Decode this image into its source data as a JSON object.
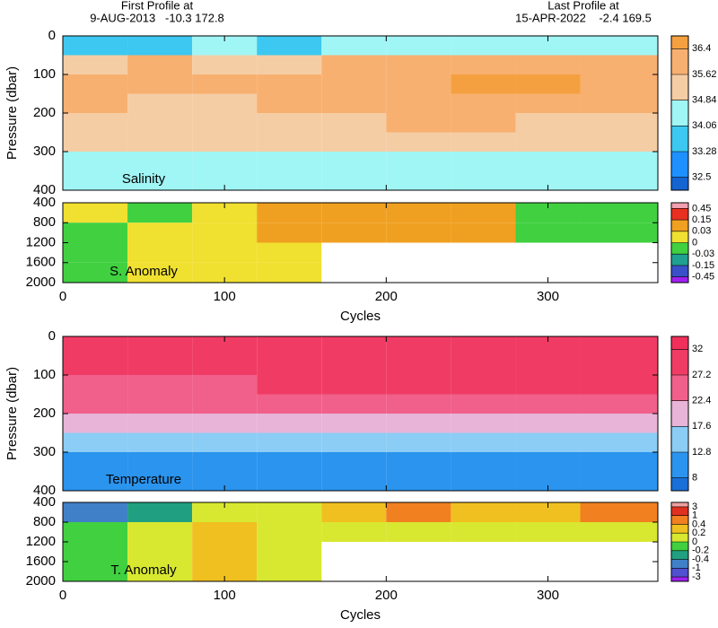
{
  "header": {
    "first_label": "First Profile at",
    "first_value": "9-AUG-2013   -10.3 172.8",
    "last_label": "Last Profile at",
    "last_value": "15-APR-2022    -2.4 169.5"
  },
  "chart_data": [
    {
      "type": "contour",
      "label": "Salinity",
      "ylabel": "Pressure (dbar)",
      "xlim": [
        0,
        368
      ],
      "xticks": [
        0,
        100,
        200,
        300
      ],
      "ylim": [
        0,
        400
      ],
      "yticks": [
        0,
        100,
        200,
        300,
        400
      ],
      "x_bins": [
        0,
        40,
        80,
        120,
        160,
        200,
        240,
        280,
        320,
        368
      ],
      "y_bins": [
        0,
        50,
        100,
        150,
        200,
        250,
        300,
        350,
        400
      ],
      "z": [
        [
          34.0,
          33.9,
          34.1,
          34.0,
          34.2,
          34.3,
          34.4,
          34.5,
          34.6
        ],
        [
          35.6,
          35.7,
          35.6,
          35.5,
          35.9,
          36.0,
          36.2,
          36.3,
          36.2
        ],
        [
          36.0,
          35.9,
          35.8,
          35.7,
          36.1,
          36.3,
          36.5,
          36.4,
          36.3
        ],
        [
          35.7,
          35.6,
          35.6,
          35.8,
          36.0,
          36.2,
          36.3,
          36.2,
          36.1
        ],
        [
          35.2,
          35.1,
          35.2,
          35.4,
          35.6,
          35.7,
          35.7,
          35.6,
          35.5
        ],
        [
          34.9,
          34.9,
          34.9,
          34.9,
          35.0,
          35.1,
          35.1,
          35.0,
          35.0
        ],
        [
          34.6,
          34.6,
          34.6,
          34.7,
          34.8,
          34.8,
          34.8,
          34.8,
          34.8
        ],
        [
          34.5,
          34.5,
          34.5,
          34.6,
          34.6,
          34.6,
          34.6,
          34.6,
          34.6
        ]
      ],
      "cticks": [
        32.5,
        33.28,
        34.06,
        34.84,
        35.62,
        36.4
      ],
      "colors": [
        "#1464d2",
        "#1e90ff",
        "#3cc8f0",
        "#a0f5f5",
        "#f5cda5",
        "#f8b070",
        "#f5a040"
      ]
    },
    {
      "type": "contour",
      "label": "S. Anomaly",
      "xlabel": "Cycles",
      "xlim": [
        0,
        368
      ],
      "xticks": [
        0,
        100,
        200,
        300
      ],
      "ylim": [
        400,
        2000
      ],
      "yticks": [
        400,
        800,
        1200,
        1600,
        2000
      ],
      "x_bins": [
        0,
        40,
        80,
        120,
        160,
        200,
        240,
        280,
        320,
        368
      ],
      "y_bins": [
        400,
        800,
        1200,
        1600,
        2000
      ],
      "z": [
        [
          0.02,
          -0.02,
          0.01,
          0.05,
          0.1,
          0.12,
          0.1,
          -0.02,
          -0.02
        ],
        [
          -0.01,
          0.01,
          0.02,
          0.03,
          0.05,
          0.05,
          0.05,
          -0.02,
          -0.02
        ],
        [
          -0.01,
          0.01,
          0.02,
          0.01,
          null,
          null,
          null,
          null,
          null
        ],
        [
          -0.02,
          0.01,
          0.01,
          0.01,
          null,
          null,
          null,
          null,
          null
        ]
      ],
      "cticks": [
        -0.45,
        -0.15,
        -0.03,
        0,
        0.03,
        0.15,
        0.45
      ],
      "colors": [
        "#a020f0",
        "#3a50c8",
        "#20a090",
        "#40d040",
        "#f0e030",
        "#f0a020",
        "#e83020",
        "#f0a0b0"
      ]
    },
    {
      "type": "contour",
      "label": "Temperature",
      "ylabel": "Pressure (dbar)",
      "xlim": [
        0,
        368
      ],
      "xticks": [
        0,
        100,
        200,
        300
      ],
      "ylim": [
        0,
        400
      ],
      "yticks": [
        0,
        100,
        200,
        300,
        400
      ],
      "x_bins": [
        0,
        40,
        80,
        120,
        160,
        200,
        240,
        280,
        320,
        368
      ],
      "y_bins": [
        0,
        50,
        100,
        150,
        200,
        250,
        300,
        350,
        400
      ],
      "z": [
        [
          29.5,
          29.6,
          29.7,
          29.8,
          29.9,
          30.0,
          29.8,
          29.6,
          29.5
        ],
        [
          28.5,
          28.3,
          28.4,
          28.6,
          28.8,
          28.9,
          28.7,
          28.5,
          28.4
        ],
        [
          27.0,
          26.5,
          26.8,
          27.3,
          27.5,
          27.8,
          27.5,
          27.4,
          27.2
        ],
        [
          24.5,
          23.8,
          24.0,
          24.8,
          25.5,
          25.8,
          25.6,
          25.2,
          24.9
        ],
        [
          20.5,
          19.5,
          19.8,
          21.0,
          22.0,
          22.3,
          22.0,
          21.5,
          21.0
        ],
        [
          16.0,
          15.5,
          15.8,
          13.5,
          14.5,
          15.0,
          14.8,
          14.5,
          14.0
        ],
        [
          12.5,
          12.2,
          12.4,
          11.8,
          12.0,
          12.3,
          12.2,
          12.0,
          11.8
        ],
        [
          11.2,
          11.0,
          11.1,
          10.8,
          11.0,
          11.2,
          11.1,
          10.9,
          10.8
        ]
      ],
      "cticks": [
        8,
        12.8,
        17.6,
        22.4,
        27.2,
        32
      ],
      "colors": [
        "#1a6fd8",
        "#2a94ee",
        "#8ccdf5",
        "#e8b4d8",
        "#f0608a",
        "#f03c64",
        "#f0305a"
      ]
    },
    {
      "type": "contour",
      "label": "T. Anomaly",
      "xlabel": "Cycles",
      "xlim": [
        0,
        368
      ],
      "xticks": [
        0,
        100,
        200,
        300
      ],
      "ylim": [
        400,
        2000
      ],
      "yticks": [
        400,
        800,
        1200,
        1600,
        2000
      ],
      "x_bins": [
        0,
        40,
        80,
        120,
        160,
        200,
        240,
        280,
        320,
        368
      ],
      "y_bins": [
        400,
        800,
        1200,
        1600,
        2000
      ],
      "z": [
        [
          -0.5,
          -0.3,
          0.1,
          0.1,
          0.3,
          0.5,
          0.3,
          0.2,
          0.6
        ],
        [
          -0.1,
          0.1,
          0.2,
          0.1,
          0.05,
          0.1,
          0.05,
          0.0,
          0.1
        ],
        [
          -0.1,
          0.1,
          0.25,
          0.1,
          null,
          null,
          null,
          null,
          null
        ],
        [
          -0.05,
          0.1,
          0.25,
          0.15,
          null,
          null,
          null,
          null,
          null
        ]
      ],
      "cticks": [
        -3,
        -1,
        -0.4,
        -0.2,
        0,
        0.2,
        0.4,
        1,
        3
      ],
      "colors": [
        "#a020f0",
        "#5050d0",
        "#4080c8",
        "#20a080",
        "#40d040",
        "#d8e830",
        "#f0c020",
        "#f08020",
        "#e03020",
        "#f0a0a0"
      ]
    }
  ]
}
